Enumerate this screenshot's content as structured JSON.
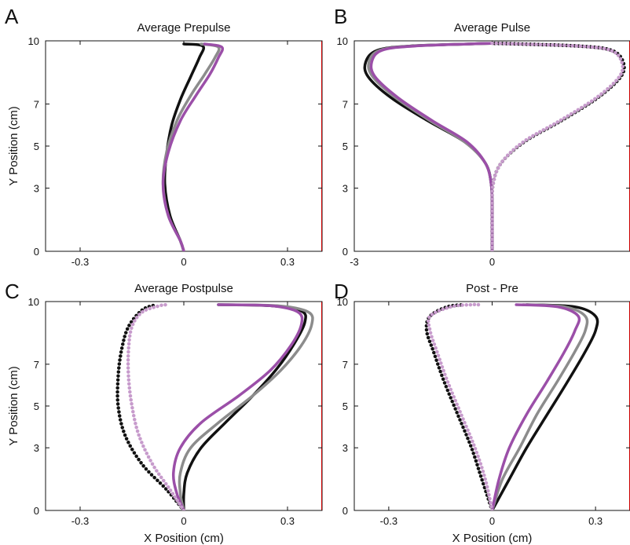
{
  "colors": {
    "black": "#111111",
    "gray": "#8c8c8c",
    "purple": "#9b4fa8",
    "purple_light": "#c79bcc"
  },
  "chart_data": [
    {
      "type": "line",
      "panel_letter": "A",
      "title": "Average Prepulse",
      "xlabel": "",
      "ylabel": "Y Position (cm)",
      "xlim": [
        -0.4,
        0.4
      ],
      "ylim": [
        0,
        10
      ],
      "xticks": [
        -0.3,
        0,
        0.3
      ],
      "xtick_labels": [
        "-0.3",
        "0",
        "0.3"
      ],
      "yticks": [
        0,
        3,
        5,
        7,
        10
      ],
      "ytick_labels": [
        "0",
        "3",
        "5",
        "7",
        "10"
      ],
      "series": [
        {
          "color": "black",
          "style": "solid",
          "x": [
            0.0,
            -0.01,
            -0.04,
            -0.055,
            -0.05,
            -0.035,
            -0.01,
            0.02,
            0.045,
            0.055,
            0.0
          ],
          "y": [
            0,
            0.5,
            1.7,
            3.2,
            4.6,
            6.0,
            7.2,
            8.3,
            9.2,
            9.75,
            9.85
          ]
        },
        {
          "color": "gray",
          "style": "solid",
          "x": [
            0.0,
            -0.01,
            -0.045,
            -0.06,
            -0.05,
            -0.02,
            0.02,
            0.06,
            0.09,
            0.1,
            0.05
          ],
          "y": [
            0,
            0.5,
            1.7,
            3.2,
            4.7,
            6.2,
            7.4,
            8.4,
            9.2,
            9.7,
            9.85
          ]
        },
        {
          "color": "purple",
          "style": "solid",
          "x": [
            0.0,
            -0.01,
            -0.045,
            -0.06,
            -0.045,
            -0.01,
            0.035,
            0.075,
            0.1,
            0.11,
            0.06
          ],
          "y": [
            0,
            0.5,
            1.7,
            3.2,
            4.7,
            6.2,
            7.4,
            8.4,
            9.2,
            9.7,
            9.85
          ]
        }
      ]
    },
    {
      "type": "line",
      "panel_letter": "B",
      "title": "Average Pulse",
      "xlabel": "",
      "ylabel": "",
      "xlim": [
        -3,
        3
      ],
      "ylim": [
        0,
        10
      ],
      "xticks": [
        -3,
        0
      ],
      "xtick_labels": [
        "-3",
        "0"
      ],
      "yticks": [
        0,
        3,
        5,
        7,
        10
      ],
      "ytick_labels": [
        "0",
        "3",
        "5",
        "7",
        "10"
      ],
      "series": [
        {
          "color": "black",
          "style": "solid",
          "x": [
            0.0,
            0.0,
            -0.02,
            -0.15,
            -0.6,
            -1.4,
            -2.2,
            -2.7,
            -2.75,
            -2.5,
            -1.8,
            -0.5,
            0.0
          ],
          "y": [
            0,
            2,
            3.2,
            4.2,
            5.2,
            6.2,
            7.3,
            8.3,
            9.0,
            9.55,
            9.75,
            9.85,
            9.88
          ]
        },
        {
          "color": "gray",
          "style": "solid",
          "x": [
            0.0,
            0.0,
            -0.02,
            -0.15,
            -0.6,
            -1.35,
            -2.1,
            -2.6,
            -2.68,
            -2.45,
            -1.75,
            -0.5,
            0.0
          ],
          "y": [
            0,
            2,
            3.2,
            4.2,
            5.2,
            6.2,
            7.3,
            8.3,
            9.0,
            9.55,
            9.75,
            9.85,
            9.88
          ]
        },
        {
          "color": "purple",
          "style": "solid",
          "x": [
            0.0,
            0.0,
            -0.02,
            -0.15,
            -0.55,
            -1.3,
            -2.05,
            -2.55,
            -2.62,
            -2.4,
            -1.7,
            -0.5,
            0.0
          ],
          "y": [
            0,
            2,
            3.2,
            4.2,
            5.2,
            6.2,
            7.3,
            8.3,
            9.0,
            9.55,
            9.75,
            9.85,
            9.88
          ]
        },
        {
          "color": "black",
          "style": "dotted",
          "x": [
            0.0,
            0.0,
            0.02,
            0.2,
            0.7,
            1.5,
            2.3,
            2.8,
            2.85,
            2.6,
            1.9,
            0.6,
            0.0
          ],
          "y": [
            0,
            2,
            3.2,
            4.2,
            5.2,
            6.2,
            7.3,
            8.3,
            9.0,
            9.55,
            9.75,
            9.85,
            9.88
          ]
        },
        {
          "color": "purple_light",
          "style": "dotted",
          "x": [
            0.0,
            0.0,
            0.02,
            0.2,
            0.68,
            1.47,
            2.27,
            2.77,
            2.82,
            2.58,
            1.88,
            0.6,
            0.0
          ],
          "y": [
            0,
            2,
            3.2,
            4.2,
            5.2,
            6.2,
            7.3,
            8.3,
            9.0,
            9.55,
            9.75,
            9.85,
            9.88
          ]
        }
      ]
    },
    {
      "type": "line",
      "panel_letter": "C",
      "title": "Average Postpulse",
      "xlabel": "X Position (cm)",
      "ylabel": "Y Position (cm)",
      "xlim": [
        -0.4,
        0.4
      ],
      "ylim": [
        0,
        10
      ],
      "xticks": [
        -0.3,
        0,
        0.3
      ],
      "xtick_labels": [
        "-0.3",
        "0",
        "0.3"
      ],
      "yticks": [
        0,
        3,
        5,
        7,
        10
      ],
      "ytick_labels": [
        "0",
        "3",
        "5",
        "7",
        "10"
      ],
      "series": [
        {
          "color": "black",
          "style": "solid",
          "x": [
            0.0,
            0.0,
            0.01,
            0.05,
            0.12,
            0.2,
            0.27,
            0.32,
            0.35,
            0.34,
            0.25,
            0.1
          ],
          "y": [
            0,
            0.8,
            1.8,
            3.0,
            4.2,
            5.5,
            6.8,
            8.0,
            9.0,
            9.55,
            9.8,
            9.85
          ]
        },
        {
          "color": "gray",
          "style": "solid",
          "x": [
            0.0,
            -0.01,
            -0.01,
            0.02,
            0.1,
            0.2,
            0.28,
            0.34,
            0.37,
            0.36,
            0.27,
            0.1
          ],
          "y": [
            0,
            0.8,
            1.8,
            3.0,
            4.2,
            5.5,
            6.7,
            7.9,
            8.9,
            9.5,
            9.8,
            9.85
          ]
        },
        {
          "color": "purple",
          "style": "solid",
          "x": [
            0.0,
            -0.02,
            -0.03,
            -0.01,
            0.05,
            0.16,
            0.25,
            0.31,
            0.34,
            0.33,
            0.25,
            0.1
          ],
          "y": [
            0,
            0.8,
            1.8,
            3.0,
            4.2,
            5.5,
            6.7,
            7.9,
            8.9,
            9.5,
            9.8,
            9.85
          ]
        },
        {
          "color": "black",
          "style": "dotted",
          "x": [
            0.0,
            -0.05,
            -0.12,
            -0.17,
            -0.19,
            -0.19,
            -0.18,
            -0.16,
            -0.12,
            -0.08
          ],
          "y": [
            0,
            1.0,
            2.2,
            3.6,
            5.0,
            6.4,
            7.7,
            8.8,
            9.6,
            9.85
          ]
        },
        {
          "color": "purple_light",
          "style": "dotted",
          "x": [
            0.0,
            -0.04,
            -0.09,
            -0.13,
            -0.15,
            -0.16,
            -0.16,
            -0.15,
            -0.12,
            -0.07,
            -0.05
          ],
          "y": [
            0,
            1.0,
            2.2,
            3.6,
            5.0,
            6.4,
            7.7,
            8.8,
            9.5,
            9.8,
            9.85
          ]
        }
      ]
    },
    {
      "type": "line",
      "panel_letter": "D",
      "title": "Post - Pre",
      "xlabel": "X Position (cm)",
      "ylabel": "",
      "xlim": [
        -0.4,
        0.4
      ],
      "ylim": [
        0,
        10
      ],
      "xticks": [
        -0.3,
        0,
        0.3
      ],
      "xtick_labels": [
        "-0.3",
        "0",
        "0.3"
      ],
      "yticks": [
        0,
        3,
        5,
        7,
        10
      ],
      "ytick_labels": [
        "0",
        "3",
        "5",
        "7",
        "10"
      ],
      "series": [
        {
          "color": "black",
          "style": "solid",
          "x": [
            0.0,
            0.05,
            0.1,
            0.16,
            0.22,
            0.27,
            0.3,
            0.3,
            0.24,
            0.1
          ],
          "y": [
            0,
            1.5,
            3.0,
            4.6,
            6.2,
            7.6,
            8.6,
            9.3,
            9.75,
            9.85
          ]
        },
        {
          "color": "gray",
          "style": "solid",
          "x": [
            0.0,
            0.03,
            0.08,
            0.13,
            0.19,
            0.24,
            0.27,
            0.27,
            0.21,
            0.09
          ],
          "y": [
            0,
            1.5,
            3.0,
            4.6,
            6.2,
            7.6,
            8.6,
            9.3,
            9.75,
            9.85
          ]
        },
        {
          "color": "purple",
          "style": "solid",
          "x": [
            0.0,
            0.02,
            0.05,
            0.1,
            0.16,
            0.21,
            0.24,
            0.25,
            0.19,
            0.07
          ],
          "y": [
            0,
            1.5,
            3.0,
            4.6,
            6.2,
            7.6,
            8.6,
            9.3,
            9.75,
            9.85
          ]
        },
        {
          "color": "black",
          "style": "dotted",
          "x": [
            0.0,
            -0.03,
            -0.06,
            -0.1,
            -0.14,
            -0.17,
            -0.19,
            -0.18,
            -0.13,
            -0.08
          ],
          "y": [
            0,
            1.5,
            3.0,
            4.6,
            6.2,
            7.6,
            8.6,
            9.3,
            9.75,
            9.85
          ]
        },
        {
          "color": "purple_light",
          "style": "dotted",
          "x": [
            0.0,
            -0.02,
            -0.05,
            -0.09,
            -0.13,
            -0.16,
            -0.18,
            -0.18,
            -0.12,
            -0.06,
            -0.04
          ],
          "y": [
            0,
            1.5,
            3.0,
            4.6,
            6.2,
            7.6,
            8.6,
            9.3,
            9.75,
            9.85,
            9.85
          ]
        }
      ]
    }
  ]
}
